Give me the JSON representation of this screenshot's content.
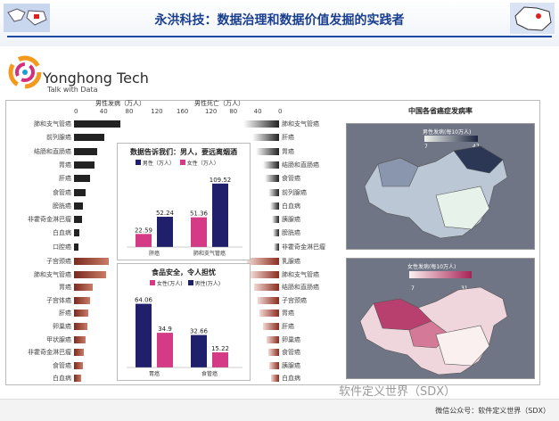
{
  "header": {
    "title": "永洪科技：数据治理和数据价值发掘的实践者"
  },
  "brand": {
    "name": "Yonghong Tech",
    "tagline": "Talk with Data"
  },
  "left_chart": {
    "header_incidence": "男性发病（万人）",
    "header_death": "男性死亡（万人）",
    "axis_incidence_ticks": [
      "0",
      "40",
      "80",
      "120",
      "160"
    ],
    "axis_death_ticks": [
      "120",
      "80",
      "40",
      "0"
    ],
    "male_left_labels": [
      "肺和支气管癌",
      "前列腺癌",
      "结肠和直肠癌",
      "胃癌",
      "肝癌",
      "食管癌",
      "膀胱癌",
      "非霍奇金淋巴瘤",
      "白血病",
      "口腔癌"
    ],
    "male_left_values": [
      1.0,
      0.65,
      0.5,
      0.45,
      0.35,
      0.25,
      0.2,
      0.17,
      0.12,
      0.1
    ],
    "female_left_labels": [
      "子宫颈癌",
      "肺和支气管癌",
      "胃癌",
      "子宫体癌",
      "肝癌",
      "卵巢癌",
      "甲状腺癌",
      "非霍奇金淋巴瘤",
      "食管癌",
      "白血病"
    ],
    "female_left_values": [
      0.75,
      0.7,
      0.4,
      0.35,
      0.3,
      0.28,
      0.25,
      0.22,
      0.2,
      0.15
    ],
    "male_right_labels": [
      "肺和支气管癌",
      "肝癌",
      "胃癌",
      "结肠和直肠癌",
      "食管癌",
      "前列腺癌",
      "白血病",
      "胰腺癌",
      "膀胱癌",
      "非霍奇金淋巴瘤"
    ],
    "male_right_values": [
      1.0,
      0.75,
      0.65,
      0.45,
      0.4,
      0.3,
      0.25,
      0.2,
      0.18,
      0.15
    ],
    "female_right_labels": [
      "乳腺癌",
      "肺和支气管癌",
      "结肠和直肠癌",
      "子宫颈癌",
      "胃癌",
      "肝癌",
      "卵巢癌",
      "食管癌",
      "胰腺癌",
      "白血病"
    ],
    "female_right_values": [
      0.9,
      0.8,
      0.7,
      0.6,
      0.55,
      0.45,
      0.35,
      0.3,
      0.28,
      0.22
    ]
  },
  "chart_data": [
    {
      "type": "bar",
      "title": "数据告诉我们：男人，要远离烟酒",
      "categories": [
        "肝癌",
        "肺和支气管癌"
      ],
      "series": [
        {
          "name": "男性（万人）",
          "values": [
            52.24,
            109.52
          ],
          "color": "#1f1f6b"
        },
        {
          "name": "女性（万人）",
          "values": [
            22.59,
            51.36
          ],
          "color": "#d43a86"
        }
      ],
      "ylim": [
        0,
        120
      ]
    },
    {
      "type": "bar",
      "title": "食品安全，令人担忧",
      "categories": [
        "胃癌",
        "食管癌"
      ],
      "series": [
        {
          "name": "男性(万人)",
          "values": [
            64.06,
            32.66
          ],
          "color": "#1f1f6b"
        },
        {
          "name": "女性(万人)",
          "values": [
            34.9,
            15.22
          ],
          "color": "#d43a86"
        }
      ],
      "ylim": [
        0,
        70
      ]
    }
  ],
  "map": {
    "title": "中国各省癌症发病率",
    "male_legend": "男性发病(每10万人)",
    "male_min": "7",
    "male_max": "47",
    "female_legend": "女性发病(每10万人)",
    "female_min": "7",
    "female_max": "31",
    "male_colors": [
      "#f0f4ee",
      "#1c2540"
    ],
    "female_colors": [
      "#fbf0f0",
      "#a72356"
    ]
  },
  "footer": {
    "text": "微信公众号：软件定义世界（SDX）",
    "watermark": "软件定义世界（SDX）"
  }
}
